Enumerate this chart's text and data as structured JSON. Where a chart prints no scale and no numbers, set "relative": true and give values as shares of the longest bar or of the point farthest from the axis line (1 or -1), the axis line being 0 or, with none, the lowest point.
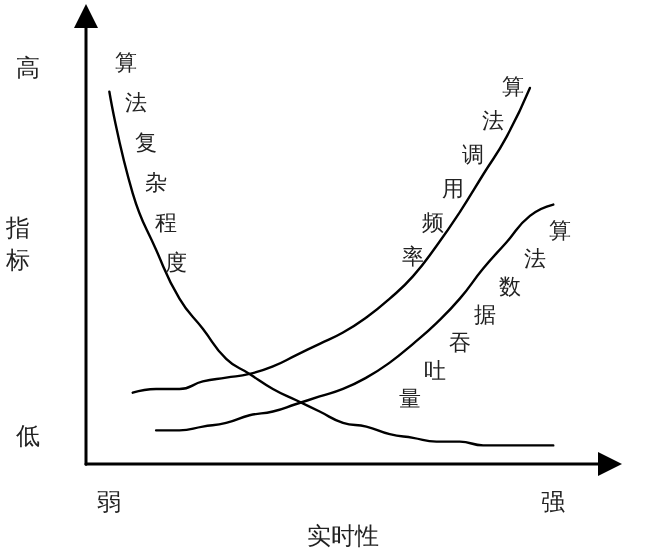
{
  "chart_data": {
    "type": "line",
    "relative": true,
    "xlabel": "实时性",
    "ylabel": "指标",
    "annotations": [
      "高",
      "低"
    ],
    "categories": [
      null,
      "弱",
      null,
      null,
      null,
      null,
      null,
      null,
      null,
      null,
      null,
      null,
      null,
      null,
      null,
      null,
      null,
      null,
      null,
      null,
      "强",
      null,
      null
    ],
    "series": [
      {
        "name": "算法复杂程度",
        "color": "#000000",
        "values": [
          null,
          0.99,
          0.72,
          0.57,
          0.44,
          0.36,
          0.28,
          0.24,
          0.2,
          0.17,
          0.14,
          0.11,
          0.1,
          0.08,
          0.07,
          0.06,
          0.06,
          0.05,
          0.05,
          0.05,
          0.05,
          null,
          null
        ]
      },
      {
        "name": "算法调用频率",
        "color": "#000000",
        "values": [
          null,
          null,
          0.19,
          0.2,
          0.2,
          0.22,
          0.23,
          0.24,
          0.26,
          0.29,
          0.32,
          0.35,
          0.39,
          0.44,
          0.5,
          0.58,
          0.67,
          0.77,
          0.87,
          1,
          null,
          null,
          null
        ]
      },
      {
        "name": "算法数据吞吐量",
        "color": "#000000",
        "values": [
          null,
          null,
          null,
          0.09,
          0.09,
          0.1,
          0.11,
          0.13,
          0.14,
          0.16,
          0.18,
          0.2,
          0.23,
          0.27,
          0.32,
          0.375,
          0.44,
          0.52,
          0.59,
          0.66,
          0.69,
          null,
          null
        ]
      }
    ],
    "grid": false,
    "legend": false,
    "marker": "none",
    "line_style": "solid"
  }
}
